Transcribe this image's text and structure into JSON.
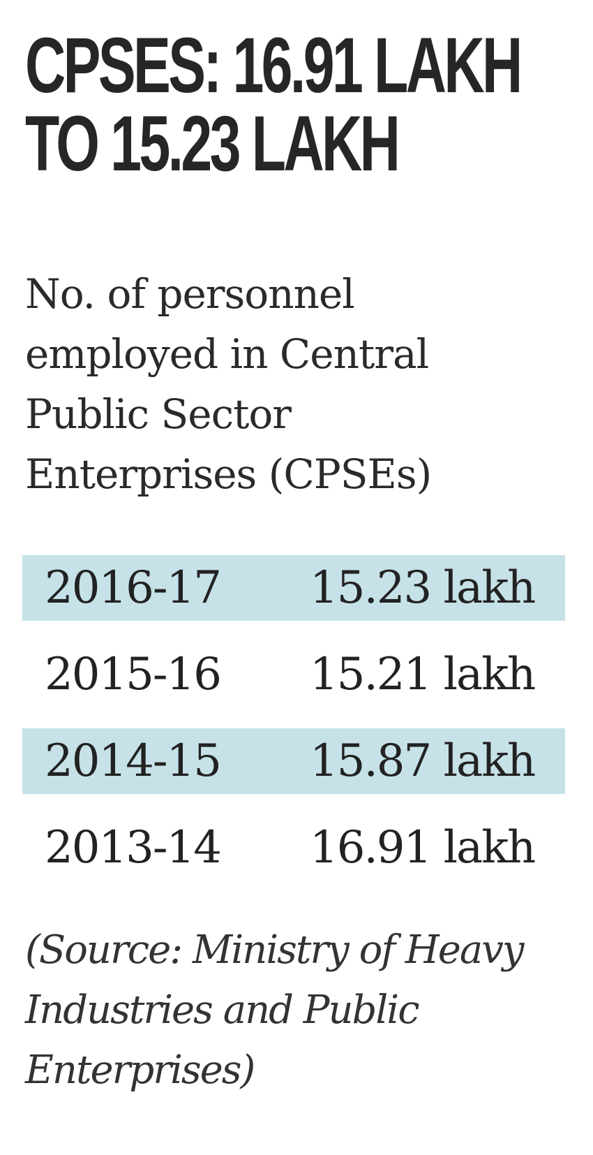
{
  "chart_data": {
    "type": "table",
    "title_lines": [
      "CPSES: 16.91 LAKH",
      "TO 15.23 LAKH"
    ],
    "subtitle_lines": [
      "No. of personnel",
      "employed in Central",
      "Public Sector",
      "Enterprises (CPSEs)"
    ],
    "rows": [
      {
        "period": "2016-17",
        "value": "15.23 lakh",
        "amount": 15.23,
        "shaded": true
      },
      {
        "period": "2015-16",
        "value": "15.21 lakh",
        "amount": 15.21,
        "shaded": false
      },
      {
        "period": "2014-15",
        "value": "15.87 lakh",
        "amount": 15.87,
        "shaded": true
      },
      {
        "period": "2013-14",
        "value": "16.91 lakh",
        "amount": 16.91,
        "shaded": false
      }
    ],
    "source_lines": [
      "(Source: Ministry of Heavy",
      "Industries and Public",
      "Enterprises)"
    ],
    "shade_color": "#c6e2e8"
  }
}
